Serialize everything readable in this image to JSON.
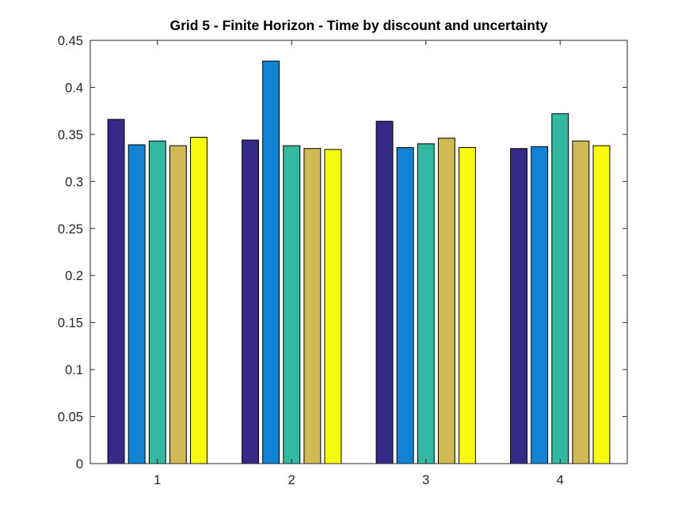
{
  "chart_data": {
    "type": "bar",
    "title": "Grid 5 - Finite Horizon - Time by discount and uncertainty",
    "xlabel": "",
    "ylabel": "",
    "categories": [
      "1",
      "2",
      "3",
      "4"
    ],
    "ylim": [
      0,
      0.45
    ],
    "yticks": [
      0,
      0.05,
      0.1,
      0.15,
      0.2,
      0.25,
      0.3,
      0.35,
      0.4,
      0.45
    ],
    "ytick_labels": [
      "0",
      "0.05",
      "0.1",
      "0.15",
      "0.2",
      "0.25",
      "0.3",
      "0.35",
      "0.4",
      "0.45"
    ],
    "grid": false,
    "legend": "none",
    "series": [
      {
        "color": "#352a87",
        "values": [
          0.366,
          0.344,
          0.364,
          0.335
        ]
      },
      {
        "color": "#1283d4",
        "values": [
          0.339,
          0.428,
          0.336,
          0.337
        ]
      },
      {
        "color": "#33b8a1",
        "values": [
          0.343,
          0.338,
          0.34,
          0.372
        ]
      },
      {
        "color": "#d1b955",
        "values": [
          0.338,
          0.335,
          0.346,
          0.343
        ]
      },
      {
        "color": "#f9fb0e",
        "values": [
          0.347,
          0.334,
          0.336,
          0.338
        ]
      }
    ]
  }
}
